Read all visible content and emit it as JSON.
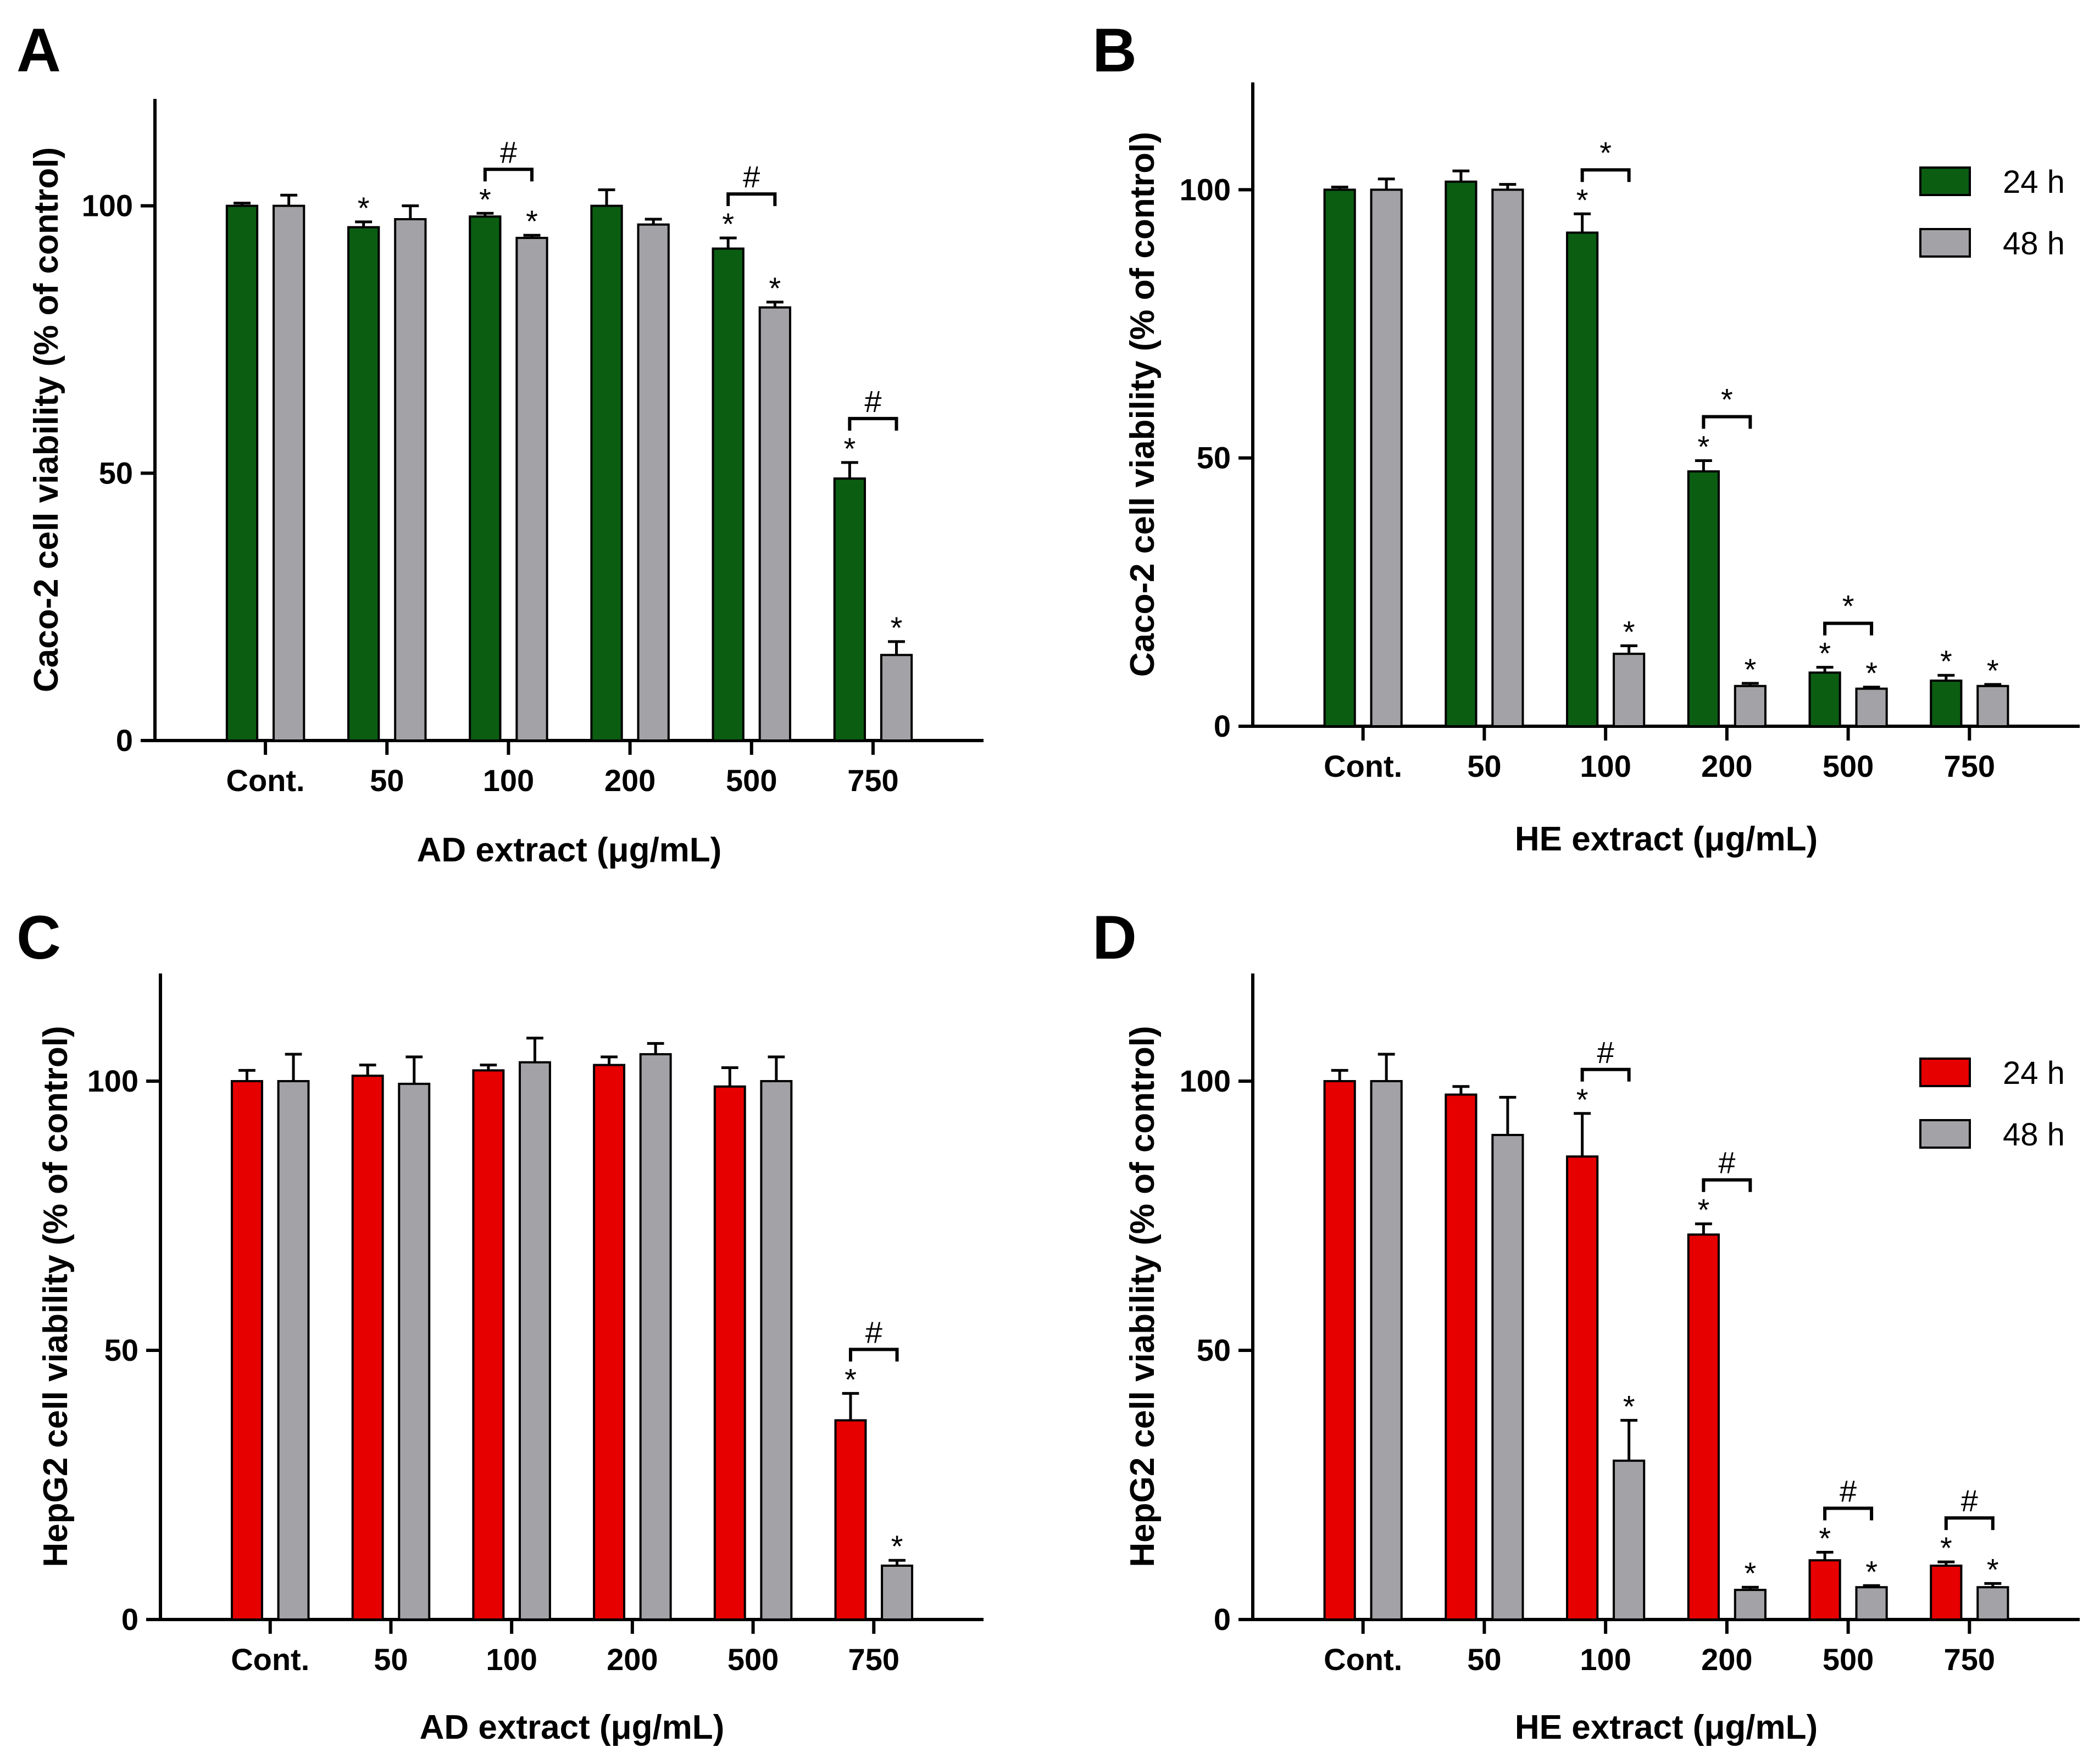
{
  "chart_data": [
    {
      "panel": "A",
      "type": "bar",
      "ylabel": "Caco-2 cell viability (% of control)",
      "xlabel": "AD extract (μg/mL)",
      "categories": [
        "Cont.",
        "50",
        "100",
        "200",
        "500",
        "750"
      ],
      "ylim": [
        0,
        120
      ],
      "yticks": [
        0,
        50,
        100
      ],
      "colors": {
        "s24": "#0b5d12",
        "s48": "#a3a3a7"
      },
      "legend": null,
      "series": [
        {
          "name": "24 h",
          "values": [
            100,
            96,
            98,
            100,
            92,
            49
          ],
          "errors": [
            0.5,
            1,
            0.6,
            3,
            2,
            3
          ],
          "stars": [
            "",
            "*",
            "*",
            "",
            "*",
            "*"
          ]
        },
        {
          "name": "48 h",
          "values": [
            100,
            97.5,
            94,
            96.5,
            81,
            16
          ],
          "errors": [
            2,
            2.5,
            0.5,
            1,
            1,
            2.5
          ],
          "stars": [
            "",
            "",
            "*",
            "",
            "*",
            "*"
          ]
        }
      ],
      "brackets": [
        {
          "category": 2,
          "symbol": "#"
        },
        {
          "category": 4,
          "symbol": "#"
        },
        {
          "category": 5,
          "symbol": "#"
        }
      ]
    },
    {
      "panel": "B",
      "type": "bar",
      "ylabel": "Caco-2 cell viability (% of control)",
      "xlabel": "HE extract (μg/mL)",
      "categories": [
        "Cont.",
        "50",
        "100",
        "200",
        "500",
        "750"
      ],
      "ylim": [
        0,
        120
      ],
      "yticks": [
        0,
        50,
        100
      ],
      "colors": {
        "s24": "#0b5d12",
        "s48": "#a3a3a7"
      },
      "legend": [
        "24 h",
        "48 h"
      ],
      "series": [
        {
          "name": "24 h",
          "values": [
            100,
            101.5,
            92,
            47.5,
            10,
            8.5
          ],
          "errors": [
            0.5,
            2,
            3.5,
            2,
            1,
            1
          ],
          "stars": [
            "",
            "",
            "*",
            "*",
            "*",
            "*"
          ]
        },
        {
          "name": "48 h",
          "values": [
            100,
            100,
            13.5,
            7.5,
            7,
            7.5
          ],
          "errors": [
            2,
            1,
            1.5,
            0.5,
            0.3,
            0.3
          ],
          "stars": [
            "",
            "",
            "*",
            "*",
            "*",
            "*"
          ]
        }
      ],
      "brackets": [
        {
          "category": 2,
          "symbol": "*"
        },
        {
          "category": 3,
          "symbol": "*"
        },
        {
          "category": 4,
          "symbol": "*"
        }
      ]
    },
    {
      "panel": "C",
      "type": "bar",
      "ylabel": "HepG2 cell viability (% of control)",
      "xlabel": "AD extract (μg/mL)",
      "categories": [
        "Cont.",
        "50",
        "100",
        "200",
        "500",
        "750"
      ],
      "ylim": [
        0,
        120
      ],
      "yticks": [
        0,
        50,
        100
      ],
      "colors": {
        "s24": "#e60000",
        "s48": "#a3a3a7"
      },
      "legend": null,
      "series": [
        {
          "name": "24 h",
          "values": [
            100,
            101,
            102,
            103,
            99,
            37
          ],
          "errors": [
            2,
            2,
            1,
            1.5,
            3.5,
            5
          ],
          "stars": [
            "",
            "",
            "",
            "",
            "",
            "*"
          ]
        },
        {
          "name": "48 h",
          "values": [
            100,
            99.5,
            103.5,
            105,
            100,
            10
          ],
          "errors": [
            5,
            5,
            4.5,
            2,
            4.5,
            1
          ],
          "stars": [
            "",
            "",
            "",
            "",
            "",
            "*"
          ]
        }
      ],
      "brackets": [
        {
          "category": 5,
          "symbol": "#"
        }
      ]
    },
    {
      "panel": "D",
      "type": "bar",
      "ylabel": "HepG2 cell viability (% of control)",
      "xlabel": "HE extract (μg/mL)",
      "categories": [
        "Cont.",
        "50",
        "100",
        "200",
        "500",
        "750"
      ],
      "ylim": [
        0,
        120
      ],
      "yticks": [
        0,
        50,
        100
      ],
      "colors": {
        "s24": "#e60000",
        "s48": "#a3a3a7"
      },
      "legend": [
        "24 h",
        "48 h"
      ],
      "series": [
        {
          "name": "24 h",
          "values": [
            100,
            97.5,
            86,
            71.5,
            11,
            10
          ],
          "errors": [
            2,
            1.5,
            8,
            2,
            1.5,
            0.7
          ],
          "stars": [
            "",
            "",
            "*",
            "*",
            "*",
            "*"
          ]
        },
        {
          "name": "48 h",
          "values": [
            100,
            90,
            29.5,
            5.5,
            6,
            6
          ],
          "errors": [
            5,
            7,
            7.5,
            0.5,
            0.3,
            0.7
          ],
          "stars": [
            "",
            "",
            "*",
            "*",
            "*",
            "*"
          ]
        }
      ],
      "brackets": [
        {
          "category": 2,
          "symbol": "#"
        },
        {
          "category": 3,
          "symbol": "#"
        },
        {
          "category": 4,
          "symbol": "#"
        },
        {
          "category": 5,
          "symbol": "#"
        }
      ]
    }
  ]
}
